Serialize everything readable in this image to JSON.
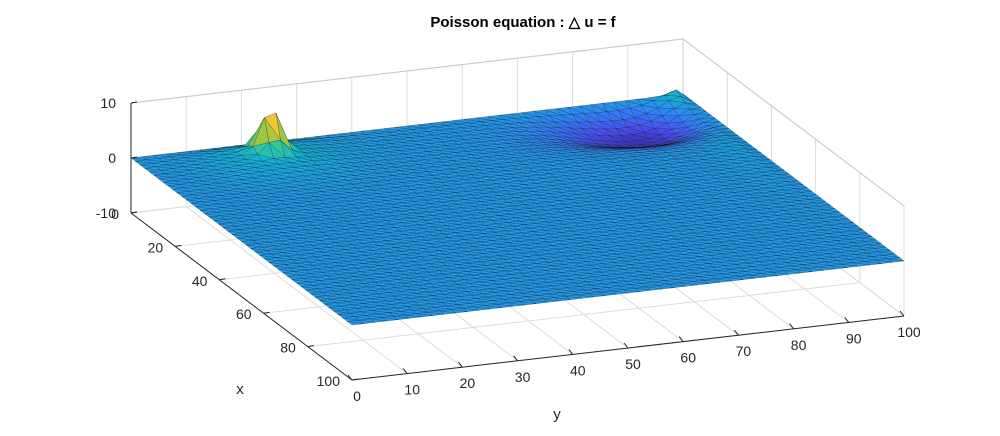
{
  "chart_data": {
    "type": "surface",
    "title": "Poisson equation : △ u = f",
    "xlabel": "x",
    "ylabel": "y",
    "zlabel": "",
    "xlim": [
      0,
      100
    ],
    "ylim": [
      0,
      100
    ],
    "zlim": [
      -10,
      10
    ],
    "x_ticks": [
      "0",
      "20",
      "40",
      "60",
      "80",
      "100"
    ],
    "y_ticks": [
      "0",
      "10",
      "20",
      "30",
      "40",
      "50",
      "60",
      "70",
      "80",
      "90",
      "100"
    ],
    "z_ticks": [
      "-10",
      "0",
      "10"
    ],
    "grid": true,
    "colormap": "parula",
    "mesh": "triangular",
    "features": [
      {
        "kind": "peak",
        "x": 8,
        "y": 22,
        "z": 8
      },
      {
        "kind": "trough",
        "x": 12,
        "y": 88,
        "z": -4
      }
    ],
    "edge_value_at_y100_x0": 4
  }
}
